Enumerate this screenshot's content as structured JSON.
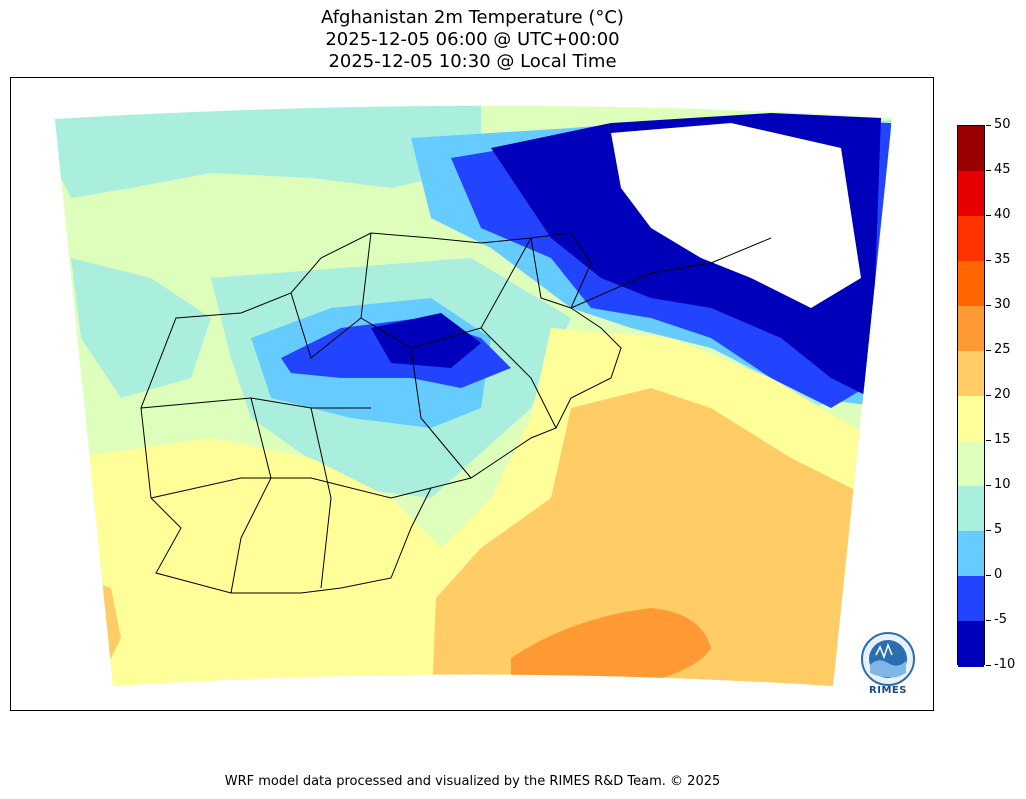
{
  "title_lines": [
    "Afghanistan 2m Temperature (°C)",
    "2025-12-05 06:00 @ UTC+00:00",
    "2025-12-05 10:30 @ Local Time"
  ],
  "colorbar": {
    "ticks": [
      "50",
      "45",
      "40",
      "35",
      "30",
      "25",
      "20",
      "15",
      "10",
      "5",
      "0",
      "-5",
      "-10"
    ],
    "colors": [
      "#9b0000",
      "#e60000",
      "#ff3300",
      "#ff6600",
      "#ff9933",
      "#ffcc66",
      "#ffff99",
      "#ddffbb",
      "#aaeedd",
      "#66ccff",
      "#2244ff",
      "#0000bb"
    ]
  },
  "map_colors": {
    "below_minus5": "#0000bb",
    "minus5_to_0": "#2244ff",
    "zero_to_5": "#66ccff",
    "five_to_10": "#aaeedd",
    "ten_to_15": "#ddffbb",
    "fifteen_to_20": "#ffff99",
    "twenty_to_25": "#ffcc66",
    "twentyfive_to_30": "#ff9933",
    "no_data": "#ffffff",
    "borders": "#000000"
  },
  "logo": {
    "text": "RIMES"
  },
  "footer": "WRF model data processed and visualized by the RIMES R&D Team. © 2025"
}
